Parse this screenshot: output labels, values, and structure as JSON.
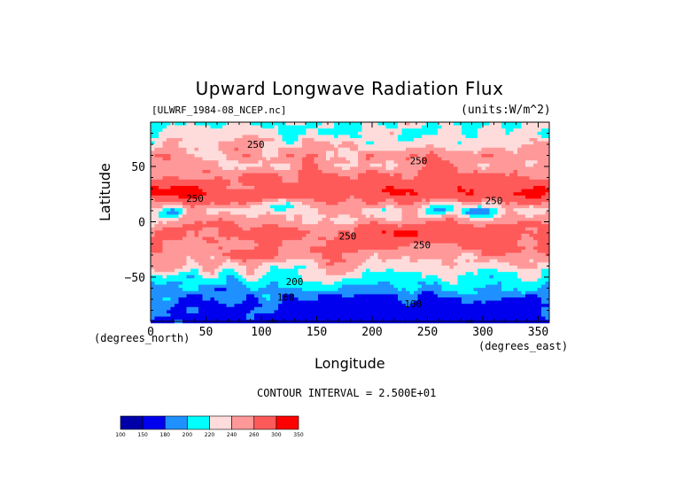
{
  "header": {
    "title": "Upward Longwave Radiation Flux",
    "file_label": "[ULWRF_1984-08_NCEP.nc]",
    "units_label": "(units:W/m^2)"
  },
  "footer": {
    "contour_interval": "CONTOUR INTERVAL = 2.500E+01"
  },
  "chart_data": {
    "type": "heatmap",
    "title": "Upward Longwave Radiation Flux",
    "xlabel": "Longitude",
    "ylabel": "Latitude",
    "x_unit_label": "(degrees_east)",
    "y_unit_label": "(degrees_north)",
    "xlim": [
      0,
      360
    ],
    "ylim": [
      -90,
      90
    ],
    "x_ticks": [
      0,
      50,
      100,
      150,
      200,
      250,
      300,
      350
    ],
    "y_ticks": [
      -50,
      0,
      50
    ],
    "y_tick_labels": [
      "−50",
      "0",
      "50"
    ],
    "contour_labels": [
      {
        "lon": 95,
        "lat": 67,
        "text": "250"
      },
      {
        "lon": 242,
        "lat": 52,
        "text": "250"
      },
      {
        "lon": 40,
        "lat": 18,
        "text": "250"
      },
      {
        "lon": 310,
        "lat": 16,
        "text": "250"
      },
      {
        "lon": 178,
        "lat": -16,
        "text": "250"
      },
      {
        "lon": 245,
        "lat": -24,
        "text": "250"
      },
      {
        "lon": 130,
        "lat": -57,
        "text": "200"
      },
      {
        "lon": 122,
        "lat": -71,
        "text": "160"
      },
      {
        "lon": 237,
        "lat": -77,
        "text": "160"
      }
    ],
    "colorbar": {
      "levels": [
        "100",
        "150",
        "180",
        "200",
        "220",
        "240",
        "260",
        "300",
        "350"
      ],
      "colors": [
        "#0000a8",
        "#0000ee",
        "#1e90ff",
        "#00ffff",
        "#ffdcdc",
        "#ff9999",
        "#ff5a5a",
        "#ff0000"
      ]
    },
    "band_profile": [
      {
        "lat": 80,
        "value": 222
      },
      {
        "lat": 60,
        "value": 245
      },
      {
        "lat": 40,
        "value": 262
      },
      {
        "lat": 25,
        "value": 285
      },
      {
        "lat": 10,
        "value": 228
      },
      {
        "lat": -10,
        "value": 270
      },
      {
        "lat": -25,
        "value": 262
      },
      {
        "lat": -40,
        "value": 238
      },
      {
        "lat": -55,
        "value": 208
      },
      {
        "lat": -65,
        "value": 190
      },
      {
        "lat": -75,
        "value": 172
      },
      {
        "lat": -88,
        "value": 165
      }
    ],
    "grid": false,
    "legend": "bottom-left"
  }
}
